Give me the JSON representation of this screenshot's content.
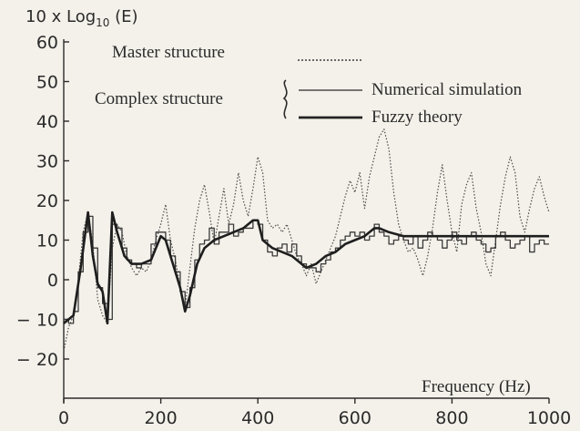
{
  "chart_data": {
    "type": "line",
    "ylabel": "10 x Log",
    "ylabel_sub": "10",
    "ylabel_suffix": " (E)",
    "xlabel": "Frequency (Hz)",
    "xlim": [
      0,
      1000
    ],
    "ylim": [
      -25,
      62
    ],
    "x_ticks": [
      0,
      200,
      400,
      600,
      800,
      1000
    ],
    "y_ticks": [
      60,
      50,
      40,
      30,
      20,
      10,
      0,
      -10,
      -20
    ],
    "y_tick_labels": [
      "60",
      "50",
      "40",
      "30",
      "20",
      "10",
      "0",
      "− 10",
      "− 20"
    ],
    "grid": false,
    "legend": {
      "master_label": "Master structure",
      "complex_label": "Complex structure",
      "numerical_label": "Numerical simulation",
      "fuzzy_label": "Fuzzy theory"
    },
    "series": [
      {
        "name": "Master structure",
        "style": "dotted",
        "points": [
          [
            0,
            -18
          ],
          [
            10,
            -12
          ],
          [
            20,
            -9
          ],
          [
            30,
            0
          ],
          [
            40,
            12
          ],
          [
            50,
            17
          ],
          [
            60,
            9
          ],
          [
            70,
            -5
          ],
          [
            80,
            -9
          ],
          [
            90,
            -11
          ],
          [
            100,
            8
          ],
          [
            110,
            14
          ],
          [
            120,
            12
          ],
          [
            130,
            6
          ],
          [
            140,
            3
          ],
          [
            150,
            1
          ],
          [
            160,
            3
          ],
          [
            170,
            2
          ],
          [
            180,
            5
          ],
          [
            190,
            10
          ],
          [
            200,
            14
          ],
          [
            210,
            19
          ],
          [
            220,
            10
          ],
          [
            230,
            5
          ],
          [
            240,
            -2
          ],
          [
            250,
            -7
          ],
          [
            260,
            3
          ],
          [
            270,
            13
          ],
          [
            280,
            20
          ],
          [
            290,
            24
          ],
          [
            300,
            17
          ],
          [
            310,
            9
          ],
          [
            320,
            16
          ],
          [
            330,
            23
          ],
          [
            340,
            14
          ],
          [
            350,
            19
          ],
          [
            360,
            27
          ],
          [
            370,
            20
          ],
          [
            380,
            16
          ],
          [
            390,
            23
          ],
          [
            400,
            31
          ],
          [
            410,
            27
          ],
          [
            420,
            15
          ],
          [
            430,
            13
          ],
          [
            440,
            14
          ],
          [
            450,
            12
          ],
          [
            460,
            14
          ],
          [
            470,
            10
          ],
          [
            480,
            6
          ],
          [
            490,
            4
          ],
          [
            500,
            1
          ],
          [
            510,
            4
          ],
          [
            520,
            -1
          ],
          [
            530,
            2
          ],
          [
            540,
            5
          ],
          [
            550,
            8
          ],
          [
            560,
            11
          ],
          [
            570,
            16
          ],
          [
            580,
            21
          ],
          [
            590,
            25
          ],
          [
            600,
            22
          ],
          [
            610,
            27
          ],
          [
            620,
            18
          ],
          [
            630,
            26
          ],
          [
            640,
            31
          ],
          [
            650,
            36
          ],
          [
            660,
            38
          ],
          [
            670,
            33
          ],
          [
            680,
            22
          ],
          [
            690,
            14
          ],
          [
            700,
            10
          ],
          [
            710,
            7
          ],
          [
            720,
            8
          ],
          [
            730,
            5
          ],
          [
            740,
            1
          ],
          [
            750,
            6
          ],
          [
            760,
            13
          ],
          [
            770,
            22
          ],
          [
            780,
            29
          ],
          [
            790,
            20
          ],
          [
            800,
            12
          ],
          [
            810,
            7
          ],
          [
            820,
            19
          ],
          [
            830,
            24
          ],
          [
            840,
            27
          ],
          [
            850,
            18
          ],
          [
            860,
            12
          ],
          [
            870,
            4
          ],
          [
            880,
            1
          ],
          [
            890,
            10
          ],
          [
            900,
            19
          ],
          [
            910,
            26
          ],
          [
            920,
            31
          ],
          [
            930,
            27
          ],
          [
            940,
            16
          ],
          [
            950,
            12
          ],
          [
            960,
            18
          ],
          [
            970,
            23
          ],
          [
            980,
            26
          ],
          [
            990,
            21
          ],
          [
            1000,
            17
          ]
        ]
      },
      {
        "name": "Numerical simulation",
        "style": "stepped",
        "points": [
          [
            0,
            -10
          ],
          [
            10,
            -11
          ],
          [
            20,
            -8
          ],
          [
            30,
            2
          ],
          [
            40,
            12
          ],
          [
            50,
            16
          ],
          [
            60,
            8
          ],
          [
            70,
            -2
          ],
          [
            80,
            -6
          ],
          [
            90,
            -10
          ],
          [
            100,
            14
          ],
          [
            110,
            13
          ],
          [
            120,
            8
          ],
          [
            130,
            5
          ],
          [
            140,
            4
          ],
          [
            150,
            3
          ],
          [
            160,
            4
          ],
          [
            170,
            4
          ],
          [
            180,
            9
          ],
          [
            190,
            12
          ],
          [
            200,
            12
          ],
          [
            210,
            10
          ],
          [
            220,
            6
          ],
          [
            230,
            2
          ],
          [
            240,
            -3
          ],
          [
            250,
            -7
          ],
          [
            260,
            -2
          ],
          [
            270,
            5
          ],
          [
            280,
            9
          ],
          [
            290,
            10
          ],
          [
            300,
            13
          ],
          [
            310,
            9
          ],
          [
            320,
            12
          ],
          [
            330,
            12
          ],
          [
            340,
            14
          ],
          [
            350,
            11
          ],
          [
            360,
            12
          ],
          [
            370,
            13
          ],
          [
            380,
            13
          ],
          [
            390,
            15
          ],
          [
            400,
            14
          ],
          [
            410,
            10
          ],
          [
            420,
            7
          ],
          [
            430,
            6
          ],
          [
            440,
            8
          ],
          [
            450,
            9
          ],
          [
            460,
            7
          ],
          [
            470,
            9
          ],
          [
            480,
            6
          ],
          [
            490,
            4
          ],
          [
            500,
            3
          ],
          [
            510,
            3
          ],
          [
            520,
            2
          ],
          [
            530,
            4
          ],
          [
            540,
            5
          ],
          [
            550,
            7
          ],
          [
            560,
            8
          ],
          [
            570,
            10
          ],
          [
            580,
            11
          ],
          [
            590,
            12
          ],
          [
            600,
            11
          ],
          [
            610,
            12
          ],
          [
            620,
            10
          ],
          [
            630,
            11
          ],
          [
            640,
            14
          ],
          [
            650,
            12
          ],
          [
            660,
            11
          ],
          [
            670,
            9
          ],
          [
            680,
            10
          ],
          [
            690,
            11
          ],
          [
            700,
            10
          ],
          [
            710,
            9
          ],
          [
            720,
            11
          ],
          [
            730,
            8
          ],
          [
            740,
            10
          ],
          [
            750,
            12
          ],
          [
            760,
            11
          ],
          [
            770,
            10
          ],
          [
            780,
            8
          ],
          [
            790,
            10
          ],
          [
            800,
            12
          ],
          [
            810,
            10
          ],
          [
            820,
            9
          ],
          [
            830,
            11
          ],
          [
            840,
            12
          ],
          [
            850,
            10
          ],
          [
            860,
            9
          ],
          [
            870,
            7
          ],
          [
            880,
            8
          ],
          [
            890,
            11
          ],
          [
            900,
            12
          ],
          [
            910,
            10
          ],
          [
            920,
            8
          ],
          [
            930,
            9
          ],
          [
            940,
            10
          ],
          [
            950,
            11
          ],
          [
            960,
            7
          ],
          [
            970,
            9
          ],
          [
            980,
            10
          ],
          [
            990,
            9
          ],
          [
            1000,
            9
          ]
        ]
      },
      {
        "name": "Fuzzy theory",
        "style": "thick",
        "points": [
          [
            0,
            -11
          ],
          [
            20,
            -9
          ],
          [
            35,
            3
          ],
          [
            50,
            17
          ],
          [
            60,
            6
          ],
          [
            70,
            -1
          ],
          [
            80,
            -3
          ],
          [
            90,
            -11
          ],
          [
            100,
            17
          ],
          [
            110,
            12
          ],
          [
            125,
            6
          ],
          [
            140,
            4
          ],
          [
            160,
            4
          ],
          [
            180,
            5
          ],
          [
            200,
            11
          ],
          [
            210,
            10
          ],
          [
            225,
            4
          ],
          [
            240,
            -2
          ],
          [
            250,
            -8
          ],
          [
            260,
            -4
          ],
          [
            275,
            4
          ],
          [
            290,
            8
          ],
          [
            310,
            10
          ],
          [
            330,
            11
          ],
          [
            350,
            12
          ],
          [
            370,
            13
          ],
          [
            390,
            15
          ],
          [
            400,
            15
          ],
          [
            410,
            10
          ],
          [
            430,
            8
          ],
          [
            450,
            7
          ],
          [
            470,
            6
          ],
          [
            490,
            4
          ],
          [
            500,
            3
          ],
          [
            520,
            4
          ],
          [
            540,
            6
          ],
          [
            560,
            7
          ],
          [
            580,
            9
          ],
          [
            600,
            10
          ],
          [
            620,
            11
          ],
          [
            640,
            13
          ],
          [
            650,
            13
          ],
          [
            670,
            12
          ],
          [
            700,
            11
          ],
          [
            730,
            11
          ],
          [
            760,
            11
          ],
          [
            800,
            11
          ],
          [
            840,
            11
          ],
          [
            880,
            11
          ],
          [
            920,
            11
          ],
          [
            960,
            11
          ],
          [
            1000,
            11
          ]
        ]
      }
    ]
  }
}
